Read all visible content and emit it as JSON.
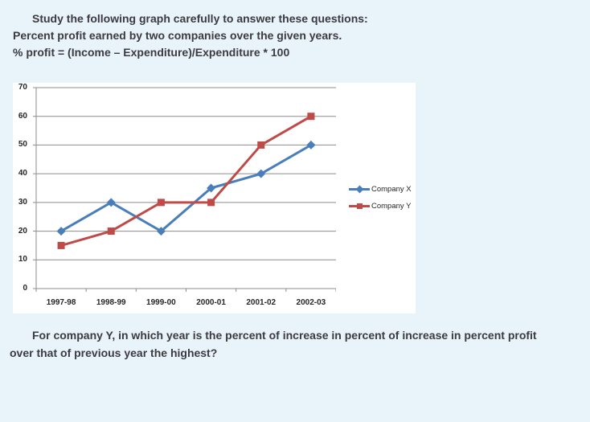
{
  "header": {
    "line1": "Study the following graph carefully to answer these questions:",
    "line2": "Percent profit earned by two companies over the given years.",
    "line3": "% profit = (Income – Expenditure)/Expenditure * 100"
  },
  "question": {
    "line1": "For company Y, in which year is the percent of increase in percent of increase in percent profit",
    "line2": "over that of previous year the highest?"
  },
  "chart_data": {
    "type": "line",
    "categories": [
      "1997-98",
      "1998-99",
      "1999-00",
      "2000-01",
      "2001-02",
      "2002-03"
    ],
    "series": [
      {
        "name": "Company X",
        "values": [
          20,
          30,
          20,
          35,
          40,
          50
        ],
        "color": "#4A7EBB",
        "marker": "diamond"
      },
      {
        "name": "Company Y",
        "values": [
          15,
          20,
          30,
          30,
          50,
          60
        ],
        "color": "#BE4B48",
        "marker": "square"
      }
    ],
    "title": "",
    "xlabel": "",
    "ylabel": "",
    "ylim": [
      0,
      70
    ],
    "yticks": [
      0,
      10,
      20,
      30,
      40,
      50,
      60,
      70
    ],
    "grid": true,
    "legend_position": "right",
    "colors": {
      "gridline": "#8C8C8C",
      "axis": "#8C8C8C",
      "tick_label": "#262626",
      "plot_background": "#FFFFFF",
      "page_background": "#E9F3FA",
      "text": "#3B3B40"
    }
  }
}
